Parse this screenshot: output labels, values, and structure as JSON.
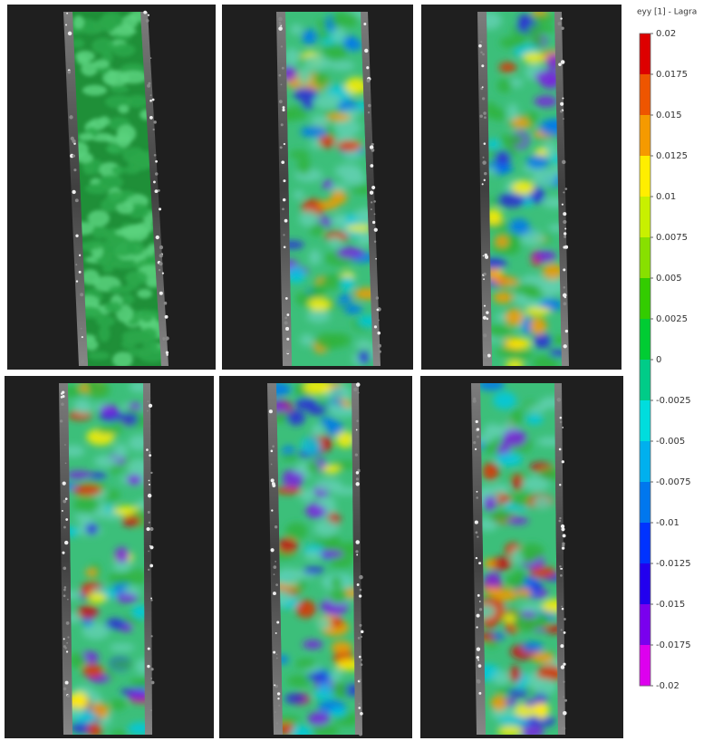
{
  "colorbar": {
    "title": "eyy [1] - Lagra",
    "lim": [
      -0.02,
      0.02
    ],
    "ticks": [
      0.02,
      0.0175,
      0.015,
      0.0125,
      0.01,
      0.0075,
      0.005,
      0.0025,
      0,
      -0.0025,
      -0.005,
      -0.0075,
      -0.01,
      -0.0125,
      -0.015,
      -0.0175,
      -0.02
    ]
  }
}
